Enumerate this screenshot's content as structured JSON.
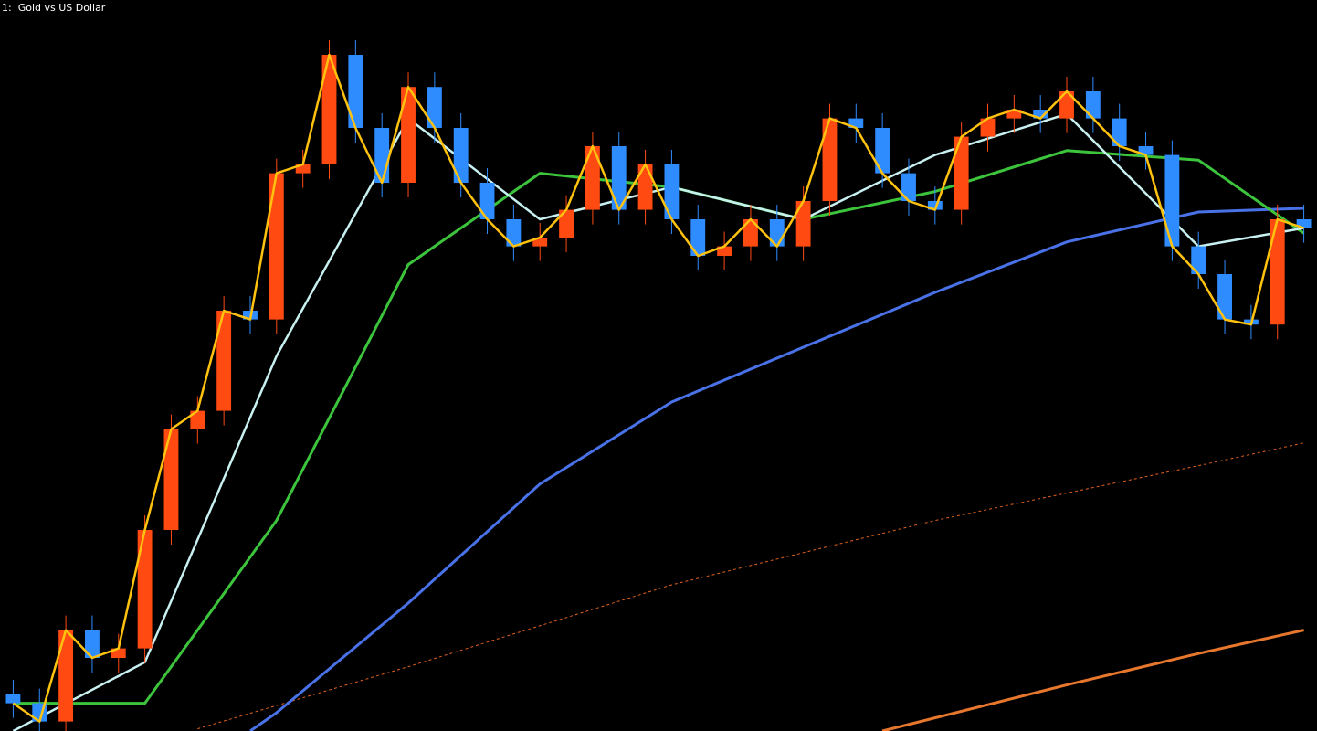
{
  "chart_data": {
    "type": "candlestick",
    "title": "1:  Gold vs US Dollar",
    "ylim": [
      0,
      100
    ],
    "up_color": "#ff4a12",
    "down_color": "#2f8cff",
    "open": [
      5,
      3.8,
      1.3,
      13.8,
      10,
      11.3,
      27.5,
      41.3,
      43.8,
      57.5,
      56.3,
      76.3,
      77.5,
      92.5,
      82.5,
      75,
      88.1,
      82.5,
      75,
      70,
      66.3,
      67.5,
      71.3,
      80,
      71.3,
      77.5,
      70,
      65,
      66.3,
      70,
      66.3,
      72.5,
      83.8,
      82.5,
      76.3,
      72.5,
      71.3,
      81.3,
      83.8,
      85,
      83.8,
      87.5,
      83.8,
      80,
      78.8,
      66.3,
      62.5,
      56.3,
      55.6,
      70
    ],
    "high": [
      7,
      5.8,
      15.8,
      15.8,
      13.3,
      29.5,
      43.3,
      45.8,
      59.5,
      59.5,
      78.3,
      79.5,
      94.5,
      94.5,
      84.5,
      90.1,
      90.1,
      84.5,
      77,
      72,
      69.5,
      73.3,
      82,
      82,
      79.5,
      79.5,
      72,
      68.3,
      72,
      72,
      74.5,
      85.8,
      85.8,
      84.5,
      78.3,
      74.5,
      83.3,
      85.8,
      87,
      87,
      89.5,
      89.5,
      85.8,
      82,
      80.8,
      68.3,
      64.5,
      58.3,
      72,
      72
    ],
    "low": [
      1.8,
      -0.7,
      -0.7,
      8,
      8,
      9.3,
      25.5,
      39.3,
      41.8,
      54.3,
      54.3,
      74.3,
      75.5,
      80.5,
      73,
      73,
      80.5,
      73,
      68,
      64.3,
      64.3,
      65.5,
      69.3,
      69.3,
      69.3,
      68,
      63,
      63,
      64.3,
      64.3,
      64.3,
      70.5,
      80.5,
      74.3,
      70.5,
      69.3,
      69.3,
      79.3,
      81.8,
      81.8,
      81.8,
      81.8,
      78,
      76.8,
      64.3,
      60.5,
      54.3,
      53.6,
      53.6,
      66.8
    ],
    "close": [
      3.8,
      1.3,
      13.8,
      10,
      11.3,
      27.5,
      41.3,
      43.8,
      57.5,
      56.3,
      76.3,
      77.5,
      92.5,
      82.5,
      75,
      88.1,
      82.5,
      75,
      70,
      66.3,
      67.5,
      71.3,
      80,
      71.3,
      77.5,
      70,
      65,
      66.3,
      70,
      66.3,
      72.5,
      83.8,
      82.5,
      76.3,
      72.5,
      71.3,
      81.3,
      83.8,
      85,
      83.8,
      87.5,
      83.8,
      80,
      78.8,
      66.3,
      62.5,
      56.3,
      55.6,
      70,
      68.8
    ],
    "close_line_color": "#ffc20e",
    "overlays": [
      {
        "color": "#e06020",
        "width": 1,
        "dashed": true,
        "x": [
          7,
          15,
          25,
          35,
          45,
          49
        ],
        "values": [
          0.3,
          8.8,
          20,
          28.8,
          36.3,
          39.4
        ]
      },
      {
        "color": "#e8772e",
        "width": 3,
        "dashed": false,
        "x": [
          33,
          40,
          45,
          49
        ],
        "values": [
          0,
          6.3,
          10.6,
          13.8
        ]
      },
      {
        "color": "#4a72e8",
        "width": 3,
        "dashed": false,
        "x": [
          9,
          10,
          15,
          20,
          25,
          30,
          35,
          40,
          45,
          49
        ],
        "values": [
          0,
          2.5,
          17.5,
          33.8,
          45,
          52.5,
          60,
          66.9,
          71,
          71.5
        ]
      },
      {
        "color": "#3cc43c",
        "width": 3,
        "dashed": false,
        "x": [
          0,
          5,
          10,
          15,
          20,
          25,
          30,
          35,
          40,
          45,
          49
        ],
        "values": [
          3.8,
          3.8,
          28.8,
          63.8,
          76.3,
          74.4,
          70,
          73.8,
          79.4,
          78.1,
          68.1
        ]
      },
      {
        "color": "#c8f0f0",
        "width": 2.5,
        "dashed": false,
        "x": [
          0,
          5,
          10,
          15,
          20,
          25,
          30,
          35,
          40,
          45,
          49
        ],
        "values": [
          0,
          9.4,
          51.3,
          83.8,
          70,
          74.4,
          70,
          78.8,
          84.4,
          66.3,
          68.8
        ]
      }
    ]
  }
}
